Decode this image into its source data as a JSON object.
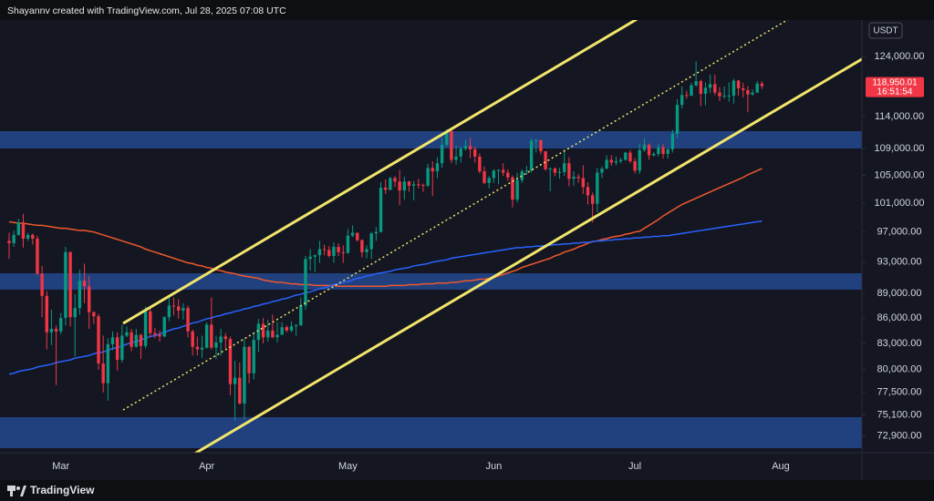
{
  "chart_data": {
    "type": "candlestick",
    "header": "Shayannv created with TradingView.com, Jul 28, 2025 07:08 UTC",
    "currency": "USDT",
    "brand": "TradingView",
    "countdown": "16:51:54",
    "last_price": {
      "value": 118950.01,
      "label": "118,950.01"
    },
    "up_color": "#089981",
    "down_color": "#f23645",
    "log_scale": true,
    "ylim": [
      71400,
      130500
    ],
    "yticks": [
      {
        "value": 124000,
        "label": "124,000.00"
      },
      {
        "value": 114000,
        "label": "114,000.00"
      },
      {
        "value": 109000,
        "label": "109,000.00"
      },
      {
        "value": 105000,
        "label": "105,000.00"
      },
      {
        "value": 101000,
        "label": "101,000.00"
      },
      {
        "value": 97000,
        "label": "97,000.00"
      },
      {
        "value": 93000,
        "label": "93,000.00"
      },
      {
        "value": 89000,
        "label": "89,000.00"
      },
      {
        "value": 86000,
        "label": "86,000.00"
      },
      {
        "value": 83000,
        "label": "83,000.00"
      },
      {
        "value": 80000,
        "label": "80,000.00"
      },
      {
        "value": 77500,
        "label": "77,500.00"
      },
      {
        "value": 75100,
        "label": "75,100.00"
      },
      {
        "value": 72900,
        "label": "72,900.00"
      }
    ],
    "categories": [
      null,
      null,
      null,
      null,
      null,
      null,
      null,
      null,
      null,
      null,
      null,
      "Mar",
      null,
      null,
      null,
      null,
      null,
      null,
      null,
      null,
      null,
      null,
      null,
      null,
      null,
      null,
      null,
      null,
      null,
      null,
      null,
      null,
      null,
      null,
      null,
      null,
      null,
      null,
      null,
      null,
      null,
      null,
      "Apr",
      null,
      null,
      null,
      null,
      null,
      null,
      null,
      null,
      null,
      null,
      null,
      null,
      null,
      null,
      null,
      null,
      null,
      null,
      null,
      null,
      null,
      null,
      null,
      null,
      null,
      null,
      null,
      null,
      null,
      "May",
      null,
      null,
      null,
      null,
      null,
      null,
      null,
      null,
      null,
      null,
      null,
      null,
      null,
      null,
      null,
      null,
      null,
      null,
      null,
      null,
      null,
      null,
      null,
      null,
      null,
      null,
      null,
      null,
      null,
      null,
      "Jun",
      null,
      null,
      null,
      null,
      null,
      null,
      null,
      null,
      null,
      null,
      null,
      null,
      null,
      null,
      null,
      null,
      null,
      null,
      null,
      null,
      null,
      null,
      null,
      null,
      null,
      null,
      null,
      null,
      null,
      "Jul",
      null,
      null,
      null,
      null,
      null,
      null,
      null,
      null,
      null,
      null,
      null,
      null,
      null,
      null,
      null,
      null,
      null,
      null,
      null,
      null,
      null,
      null,
      null,
      null,
      null,
      null,
      null,
      null,
      null,
      null,
      "Aug"
    ],
    "open": [
      95800,
      95500,
      96600,
      98300,
      96100,
      96600,
      96100,
      91500,
      88700,
      84300,
      84700,
      84400,
      86000,
      94300,
      86100,
      87200,
      90600,
      89900,
      86700,
      86200,
      80700,
      78500,
      82900,
      83700,
      81100,
      83900,
      84300,
      82600,
      84000,
      82700,
      86800,
      84200,
      84000,
      83800,
      86100,
      87500,
      87400,
      86900,
      87200,
      84400,
      82600,
      82300,
      82500,
      85200,
      82500,
      83100,
      83800,
      83500,
      78400,
      79100,
      76300,
      82600,
      79600,
      83400,
      85300,
      83700,
      84500,
      83700,
      84000,
      84900,
      84500,
      85000,
      85100,
      87500,
      93400,
      93700,
      93900,
      94700,
      94600,
      93800,
      95000,
      94300,
      94200,
      96500,
      96900,
      95900,
      94300,
      94700,
      96800,
      97000,
      103200,
      102900,
      104600,
      104100,
      102800,
      104100,
      103500,
      103700,
      103600,
      103500,
      106100,
      105600,
      106800,
      109600,
      111700,
      107300,
      107800,
      109000,
      109400,
      108900,
      107800,
      105600,
      103900,
      104600,
      105700,
      105800,
      105400,
      104700,
      101500,
      104300,
      105600,
      105700,
      110200,
      110300,
      108600,
      105900,
      106000,
      105400,
      105500,
      106800,
      104500,
      104800,
      104600,
      103300,
      102100,
      100900,
      105400,
      106000,
      107300,
      106900,
      107100,
      107300,
      108400,
      107100,
      105700,
      108800,
      109600,
      108000,
      108200,
      109200,
      108200,
      108900,
      111300,
      115900,
      117500,
      117400,
      119100,
      119800,
      117700,
      118700,
      119300,
      117900,
      117300,
      117400,
      117400,
      119900,
      118600,
      118300,
      117600,
      117900,
      119400,
      null,
      null,
      null,
      null
    ],
    "high": [
      96900,
      97200,
      98800,
      99500,
      96900,
      96800,
      96500,
      92500,
      89300,
      87000,
      85100,
      86600,
      95000,
      94400,
      88900,
      92000,
      92800,
      91200,
      86800,
      86500,
      83900,
      83600,
      84400,
      84300,
      85200,
      85000,
      84700,
      84700,
      84100,
      87400,
      87400,
      84800,
      84500,
      86200,
      88800,
      88500,
      88300,
      87800,
      87500,
      84600,
      83800,
      83900,
      85500,
      88500,
      83900,
      84700,
      84200,
      83800,
      81000,
      80800,
      83500,
      82700,
      84300,
      85900,
      86000,
      85800,
      86400,
      85500,
      85500,
      85100,
      85600,
      85300,
      88500,
      93800,
      94700,
      94000,
      95800,
      95300,
      95100,
      95600,
      95500,
      95200,
      97400,
      97900,
      96900,
      96000,
      95200,
      97000,
      97700,
      104000,
      104400,
      104800,
      104900,
      105800,
      104800,
      104200,
      104200,
      104500,
      103800,
      106700,
      107100,
      107700,
      110700,
      112000,
      111900,
      109500,
      109300,
      110400,
      110700,
      109300,
      108300,
      106300,
      104900,
      105900,
      105900,
      106800,
      105900,
      105000,
      105400,
      105900,
      106400,
      110600,
      110500,
      110400,
      108600,
      106200,
      106200,
      106100,
      108900,
      107700,
      105600,
      105200,
      106500,
      104000,
      102500,
      106100,
      106300,
      108000,
      108000,
      107800,
      107600,
      108500,
      108800,
      107600,
      109800,
      110600,
      109800,
      108500,
      109700,
      109700,
      109200,
      111900,
      116800,
      118900,
      118200,
      119500,
      123200,
      120000,
      119600,
      120900,
      120900,
      118800,
      118900,
      119600,
      120200,
      120000,
      119500,
      119000,
      118400,
      119800,
      119800,
      null,
      null,
      null,
      null
    ],
    "low": [
      93400,
      95000,
      96500,
      94900,
      95800,
      95300,
      91300,
      86100,
      82300,
      82800,
      78300,
      84100,
      85100,
      85000,
      81500,
      86400,
      87800,
      84700,
      85300,
      80000,
      77500,
      76600,
      82200,
      79900,
      80800,
      83700,
      82100,
      82500,
      81200,
      82400,
      83700,
      83600,
      83200,
      83700,
      85600,
      86300,
      85900,
      85800,
      83700,
      81600,
      81600,
      81300,
      82400,
      82300,
      81200,
      81600,
      82400,
      77200,
      74500,
      76200,
      74600,
      78500,
      78900,
      82000,
      83000,
      83200,
      83600,
      83100,
      84000,
      84300,
      84300,
      83900,
      85100,
      87000,
      91900,
      91700,
      92900,
      93900,
      93600,
      92900,
      93800,
      92900,
      94100,
      96300,
      95700,
      93600,
      93500,
      93400,
      95800,
      96900,
      102300,
      102800,
      103300,
      100700,
      101500,
      102600,
      101400,
      103100,
      102600,
      103300,
      102000,
      104600,
      106100,
      109300,
      106800,
      106600,
      106900,
      108700,
      107600,
      106900,
      105300,
      103700,
      103100,
      103900,
      103700,
      104900,
      104200,
      100400,
      101100,
      103900,
      105100,
      105400,
      108400,
      108100,
      105700,
      102700,
      104900,
      104500,
      104900,
      103400,
      103500,
      103900,
      102300,
      100800,
      98300,
      99700,
      104600,
      105900,
      106400,
      106500,
      106800,
      107200,
      106800,
      105300,
      105200,
      108500,
      107300,
      107800,
      107800,
      107500,
      107500,
      108400,
      110600,
      115300,
      116900,
      117300,
      118900,
      115700,
      115800,
      117800,
      117500,
      116500,
      116900,
      116400,
      116100,
      117400,
      117100,
      114700,
      117400,
      117800,
      118500,
      null,
      null,
      null,
      null
    ],
    "close": [
      95500,
      96600,
      98300,
      96100,
      96600,
      96100,
      91500,
      88700,
      84300,
      84700,
      84400,
      86000,
      94300,
      86100,
      87200,
      90600,
      89900,
      86700,
      86200,
      80700,
      78500,
      82900,
      83700,
      81100,
      83900,
      84300,
      82600,
      84000,
      82700,
      86800,
      84200,
      84000,
      83800,
      86100,
      87500,
      87400,
      86900,
      87200,
      84400,
      82600,
      82300,
      82500,
      85200,
      82500,
      83100,
      83800,
      83500,
      78400,
      79100,
      76300,
      82600,
      79600,
      83400,
      85300,
      83700,
      84500,
      83700,
      84000,
      84900,
      84500,
      85000,
      85100,
      87500,
      93400,
      93700,
      93900,
      94700,
      94600,
      93800,
      95000,
      94300,
      94200,
      96500,
      96900,
      95900,
      94300,
      94700,
      96800,
      97000,
      103200,
      102900,
      104600,
      104100,
      102800,
      104100,
      103500,
      103700,
      103600,
      103500,
      106100,
      105600,
      106800,
      109600,
      111700,
      107300,
      107800,
      109000,
      109400,
      108900,
      107800,
      105600,
      103900,
      104600,
      105700,
      105800,
      105400,
      104700,
      101500,
      104300,
      105600,
      105700,
      110200,
      110300,
      108600,
      105900,
      106000,
      105400,
      105500,
      106800,
      104500,
      104800,
      104600,
      103300,
      102100,
      100900,
      105400,
      106000,
      107300,
      106900,
      107100,
      107300,
      108400,
      107100,
      105700,
      108800,
      109600,
      108000,
      108200,
      109200,
      108200,
      108900,
      111300,
      115900,
      117500,
      117400,
      119100,
      119800,
      117700,
      118700,
      119300,
      117900,
      117300,
      117400,
      117400,
      119900,
      118600,
      118300,
      117600,
      117900,
      119400,
      118950,
      null,
      null,
      null,
      null
    ],
    "lines": [
      {
        "color": "#f0582c",
        "values": [
          98400,
          98300,
          98200,
          98200,
          98100,
          98000,
          97900,
          97900,
          97800,
          97700,
          97600,
          97500,
          97500,
          97400,
          97300,
          97200,
          97200,
          97100,
          97000,
          96800,
          96600,
          96400,
          96200,
          96000,
          95800,
          95600,
          95400,
          95200,
          95000,
          94700,
          94500,
          94300,
          94100,
          93900,
          93700,
          93500,
          93300,
          93100,
          92900,
          92800,
          92600,
          92500,
          92300,
          92200,
          92000,
          91900,
          91700,
          91600,
          91500,
          91300,
          91200,
          91100,
          91000,
          90900,
          90700,
          90600,
          90500,
          90400,
          90400,
          90300,
          90200,
          90200,
          90100,
          90100,
          90100,
          90000,
          90000,
          90000,
          90000,
          90000,
          89900,
          89900,
          89900,
          89900,
          89900,
          89900,
          89900,
          89900,
          89900,
          89900,
          89900,
          90000,
          90000,
          90000,
          90000,
          90100,
          90100,
          90100,
          90200,
          90200,
          90200,
          90300,
          90300,
          90300,
          90400,
          90400,
          90500,
          90600,
          90600,
          90700,
          90800,
          90800,
          90900,
          91000,
          91200,
          91400,
          91600,
          91800,
          92000,
          92300,
          92500,
          92700,
          92900,
          93100,
          93300,
          93500,
          93800,
          94000,
          94300,
          94500,
          94700,
          95000,
          95200,
          95500,
          95700,
          95800,
          96000,
          96100,
          96300,
          96400,
          96500,
          96700,
          96800,
          97000,
          97100,
          97500,
          97900,
          98300,
          98700,
          99200,
          99600,
          100000,
          100400,
          100800,
          101100,
          101400,
          101700,
          102000,
          102300,
          102600,
          102900,
          103200,
          103500,
          103800,
          104100,
          104400,
          104700,
          105100,
          105400,
          105700,
          106000,
          null,
          null,
          null,
          null
        ]
      },
      {
        "color": "#2962ff",
        "values": [
          79500,
          79600,
          79800,
          79900,
          80000,
          80100,
          80300,
          80400,
          80500,
          80600,
          80800,
          80900,
          81000,
          81100,
          81300,
          81400,
          81500,
          81600,
          81800,
          81900,
          82000,
          82200,
          82400,
          82500,
          82700,
          82900,
          83100,
          83200,
          83400,
          83600,
          83800,
          83900,
          84100,
          84300,
          84500,
          84700,
          84800,
          85000,
          85200,
          85400,
          85500,
          85700,
          85900,
          86000,
          86200,
          86300,
          86500,
          86600,
          86800,
          86900,
          87100,
          87200,
          87400,
          87500,
          87700,
          87800,
          88000,
          88100,
          88300,
          88400,
          88600,
          88800,
          88900,
          89100,
          89200,
          89400,
          89600,
          89700,
          89900,
          90100,
          90200,
          90400,
          90500,
          90700,
          90900,
          91000,
          91200,
          91300,
          91500,
          91600,
          91700,
          91800,
          92000,
          92100,
          92200,
          92300,
          92500,
          92600,
          92700,
          92800,
          93000,
          93100,
          93200,
          93300,
          93500,
          93600,
          93700,
          93800,
          93900,
          94000,
          94100,
          94200,
          94300,
          94400,
          94500,
          94600,
          94700,
          94800,
          94900,
          94900,
          95000,
          95000,
          95100,
          95100,
          95200,
          95200,
          95300,
          95300,
          95400,
          95400,
          95500,
          95500,
          95600,
          95600,
          95700,
          95800,
          95800,
          95900,
          95900,
          96000,
          96000,
          96100,
          96100,
          96200,
          96200,
          96300,
          96300,
          96400,
          96400,
          96500,
          96500,
          96600,
          96700,
          96800,
          96900,
          97000,
          97100,
          97200,
          97300,
          97400,
          97500,
          97600,
          97700,
          97800,
          97900,
          98000,
          98100,
          98200,
          98300,
          98400,
          98500,
          null,
          null,
          null,
          null
        ]
      }
    ]
  }
}
